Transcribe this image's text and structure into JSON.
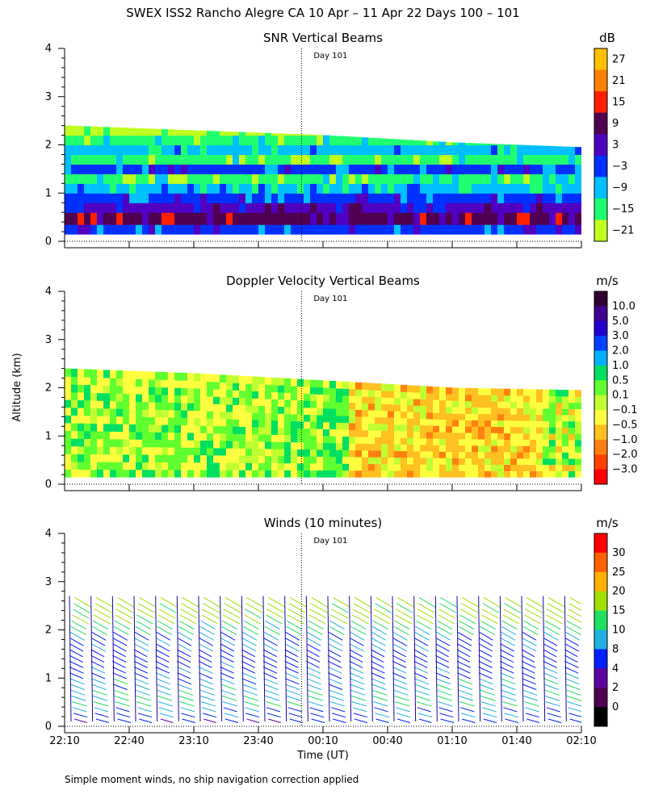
{
  "page": {
    "title": "SWEX ISS2 Rancho Alegre CA  10 Apr – 11 Apr 22 Days 100 – 101",
    "ylabel": "Altitude (km)",
    "xlabel": "Time (UT)",
    "footnote": "Simple moment winds, no ship navigation correction applied",
    "day_marker_label": "Day 101",
    "x_ticks": [
      "22:10",
      "22:40",
      "23:10",
      "23:40",
      "00:10",
      "00:40",
      "01:10",
      "01:40",
      "02:10"
    ],
    "y_ticks": [
      "0",
      "1",
      "2",
      "3",
      "4"
    ]
  },
  "chart_data": [
    {
      "type": "heatmap",
      "title": "SNR Vertical Beams",
      "colorbar_unit": "dB",
      "colorbar_labels": [
        "27",
        "21",
        "15",
        "9",
        "3",
        "−3",
        "−9",
        "−15",
        "−21"
      ],
      "colorbar_colors": [
        "#ffc000",
        "#ff8000",
        "#ff2000",
        "#500050",
        "#5000c0",
        "#0030ff",
        "#00c0ff",
        "#20ff70",
        "#c0ff20"
      ],
      "xlim": [
        "22:10",
        "02:10"
      ],
      "ylim": [
        0,
        4
      ],
      "day_marker_time": "00:00",
      "profile": {
        "altitudes_km": [
          0.2,
          0.5,
          0.7,
          0.9,
          1.1,
          1.3,
          1.5,
          1.7,
          1.9,
          2.1,
          2.3
        ],
        "snr_db": [
          -3,
          9,
          3,
          -3,
          -9,
          -15,
          -3,
          -15,
          -9,
          -15,
          -21
        ]
      },
      "top_height_km": {
        "times": [
          "22:10",
          "23:10",
          "00:10",
          "01:10",
          "02:10"
        ],
        "values": [
          2.4,
          2.3,
          2.2,
          2.05,
          1.95
        ]
      }
    },
    {
      "type": "heatmap",
      "title": "Doppler Velocity Vertical Beams",
      "colorbar_unit": "m/s",
      "colorbar_labels": [
        "10.0",
        "5.0",
        "3.0",
        "2.0",
        "1.0",
        "0.5",
        "0.1",
        "−0.1",
        "−0.5",
        "−1.0",
        "−2.0",
        "−3.0"
      ],
      "colorbar_colors": [
        "#300030",
        "#400090",
        "#2000d0",
        "#0040ff",
        "#00b0ff",
        "#00e060",
        "#60ff30",
        "#c0ff30",
        "#ffff40",
        "#ffc020",
        "#ff8010",
        "#ff4000",
        "#ff0000"
      ],
      "xlim": [
        "22:10",
        "02:10"
      ],
      "ylim": [
        0,
        4
      ],
      "day_marker_time": "00:00",
      "regimes": [
        {
          "from": "22:10",
          "to": "23:50",
          "velocity_ms": 0.1
        },
        {
          "from": "23:50",
          "to": "00:20",
          "velocity_ms": 0.3
        },
        {
          "from": "00:20",
          "to": "01:50",
          "velocity_ms": -0.5
        },
        {
          "from": "01:50",
          "to": "02:10",
          "velocity_ms": 0.0
        }
      ],
      "top_height_km": {
        "times": [
          "22:10",
          "23:10",
          "00:10",
          "01:10",
          "02:10"
        ],
        "values": [
          2.4,
          2.3,
          2.15,
          2.0,
          1.95
        ]
      }
    },
    {
      "type": "scatter",
      "title": "Winds (10 minutes)",
      "colorbar_unit": "m/s",
      "colorbar_labels": [
        "30",
        "25",
        "20",
        "15",
        "10",
        "8",
        "4",
        "2",
        "0"
      ],
      "colorbar_colors": [
        "#ff0000",
        "#ff6000",
        "#ffb000",
        "#a0e000",
        "#20e060",
        "#20b0e0",
        "#0020ff",
        "#6000a0",
        "#500050",
        "#000000"
      ],
      "xlim": [
        "22:10",
        "02:10"
      ],
      "ylim": [
        0,
        4
      ],
      "day_marker_time": "00:00",
      "profile_times": [
        "22:10",
        "22:20",
        "22:30",
        "22:40",
        "22:50",
        "23:00",
        "23:10",
        "23:20",
        "23:30",
        "23:40",
        "23:50",
        "00:00",
        "00:10",
        "00:20",
        "00:30",
        "00:40",
        "00:50",
        "01:00",
        "01:10",
        "01:20",
        "01:30",
        "01:40",
        "01:50",
        "02:00",
        "02:10"
      ],
      "wind_speed_by_altitude": {
        "altitudes_km": [
          0.2,
          0.5,
          0.8,
          1.1,
          1.4,
          1.7,
          2.0,
          2.3,
          2.6
        ],
        "speed_ms": [
          5,
          8,
          10,
          9,
          7,
          6,
          8,
          11,
          16
        ]
      }
    }
  ]
}
